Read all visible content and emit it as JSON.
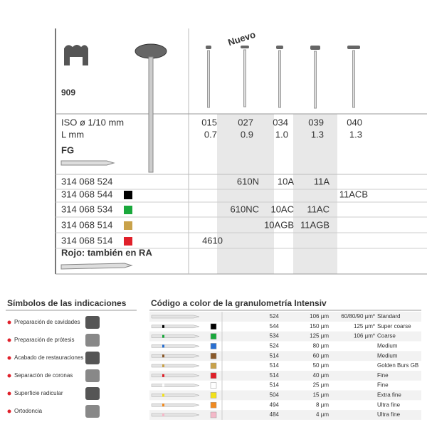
{
  "product": {
    "code": "909",
    "new_label": "Nuevo",
    "shank": "FG",
    "note": "Rojo: también en RA",
    "spec_rows": [
      {
        "label": "ISO ø 1/10 mm",
        "cells": [
          "015",
          "027",
          "034",
          "039",
          "040"
        ]
      },
      {
        "label": "L mm",
        "cells": [
          "0.7",
          "0.9",
          "1.0",
          "1.3",
          "1.3"
        ]
      }
    ],
    "article_rows": [
      {
        "label": "314 068 524",
        "swatch": null,
        "cells": [
          null,
          "610N",
          "10A",
          "11A",
          null
        ]
      },
      {
        "label": "314 068 544",
        "swatch": "#000000",
        "cells": [
          null,
          null,
          null,
          null,
          "11ACB"
        ]
      },
      {
        "label": "314 068 534",
        "swatch": "#1aa83c",
        "cells": [
          null,
          "610NC",
          "10AC",
          "11AC",
          null
        ]
      },
      {
        "label": "314 068 514",
        "swatch": "#c9a24a",
        "cells": [
          null,
          null,
          "10AGB",
          "11AGB",
          null
        ]
      },
      {
        "label": "314 068 514",
        "swatch": "#e0202a",
        "cells": [
          "4610",
          null,
          null,
          null,
          null
        ]
      }
    ]
  },
  "indications": {
    "title": "Símbolos de las indicaciones",
    "items": [
      "Preparación de cavidades",
      "Preparación de prótesis",
      "Acabado de restauraciones",
      "Separación de coronas",
      "Superficie radicular",
      "Ortodoncia"
    ]
  },
  "grit": {
    "title": "Código a color de la granulometría Intensiv",
    "rows": [
      {
        "shank": "524",
        "grain": "106 µm",
        "alt": "60/80/90 µm*",
        "name": "Standard",
        "color": null
      },
      {
        "shank": "544",
        "grain": "150 µm",
        "alt": "125 µm*",
        "name": "Super coarse",
        "color": "#000000"
      },
      {
        "shank": "534",
        "grain": "125 µm",
        "alt": "106 µm*",
        "name": "Coarse",
        "color": "#1aa83c"
      },
      {
        "shank": "524",
        "grain": "80 µm",
        "alt": null,
        "name": "Medium",
        "color": "#2a6fd0"
      },
      {
        "shank": "514",
        "grain": "60 µm",
        "alt": null,
        "name": "Medium",
        "color": "#8a5a2b"
      },
      {
        "shank": "514",
        "grain": "50 µm",
        "alt": null,
        "name": "Golden Burs GB",
        "color": "#c9a24a"
      },
      {
        "shank": "514",
        "grain": "40 µm",
        "alt": null,
        "name": "Fine",
        "color": "#e0202a"
      },
      {
        "shank": "514",
        "grain": "25 µm",
        "alt": null,
        "name": "Fine",
        "color": "#ffffff"
      },
      {
        "shank": "504",
        "grain": "15 µm",
        "alt": null,
        "name": "Extra fine",
        "color": "#f2e21a"
      },
      {
        "shank": "494",
        "grain": "8 µm",
        "alt": null,
        "name": "Ultra fine",
        "color": "#f08a20"
      },
      {
        "shank": "484",
        "grain": "4 µm",
        "alt": null,
        "name": "Ultra fine",
        "color": "#f4b8c8"
      }
    ]
  }
}
